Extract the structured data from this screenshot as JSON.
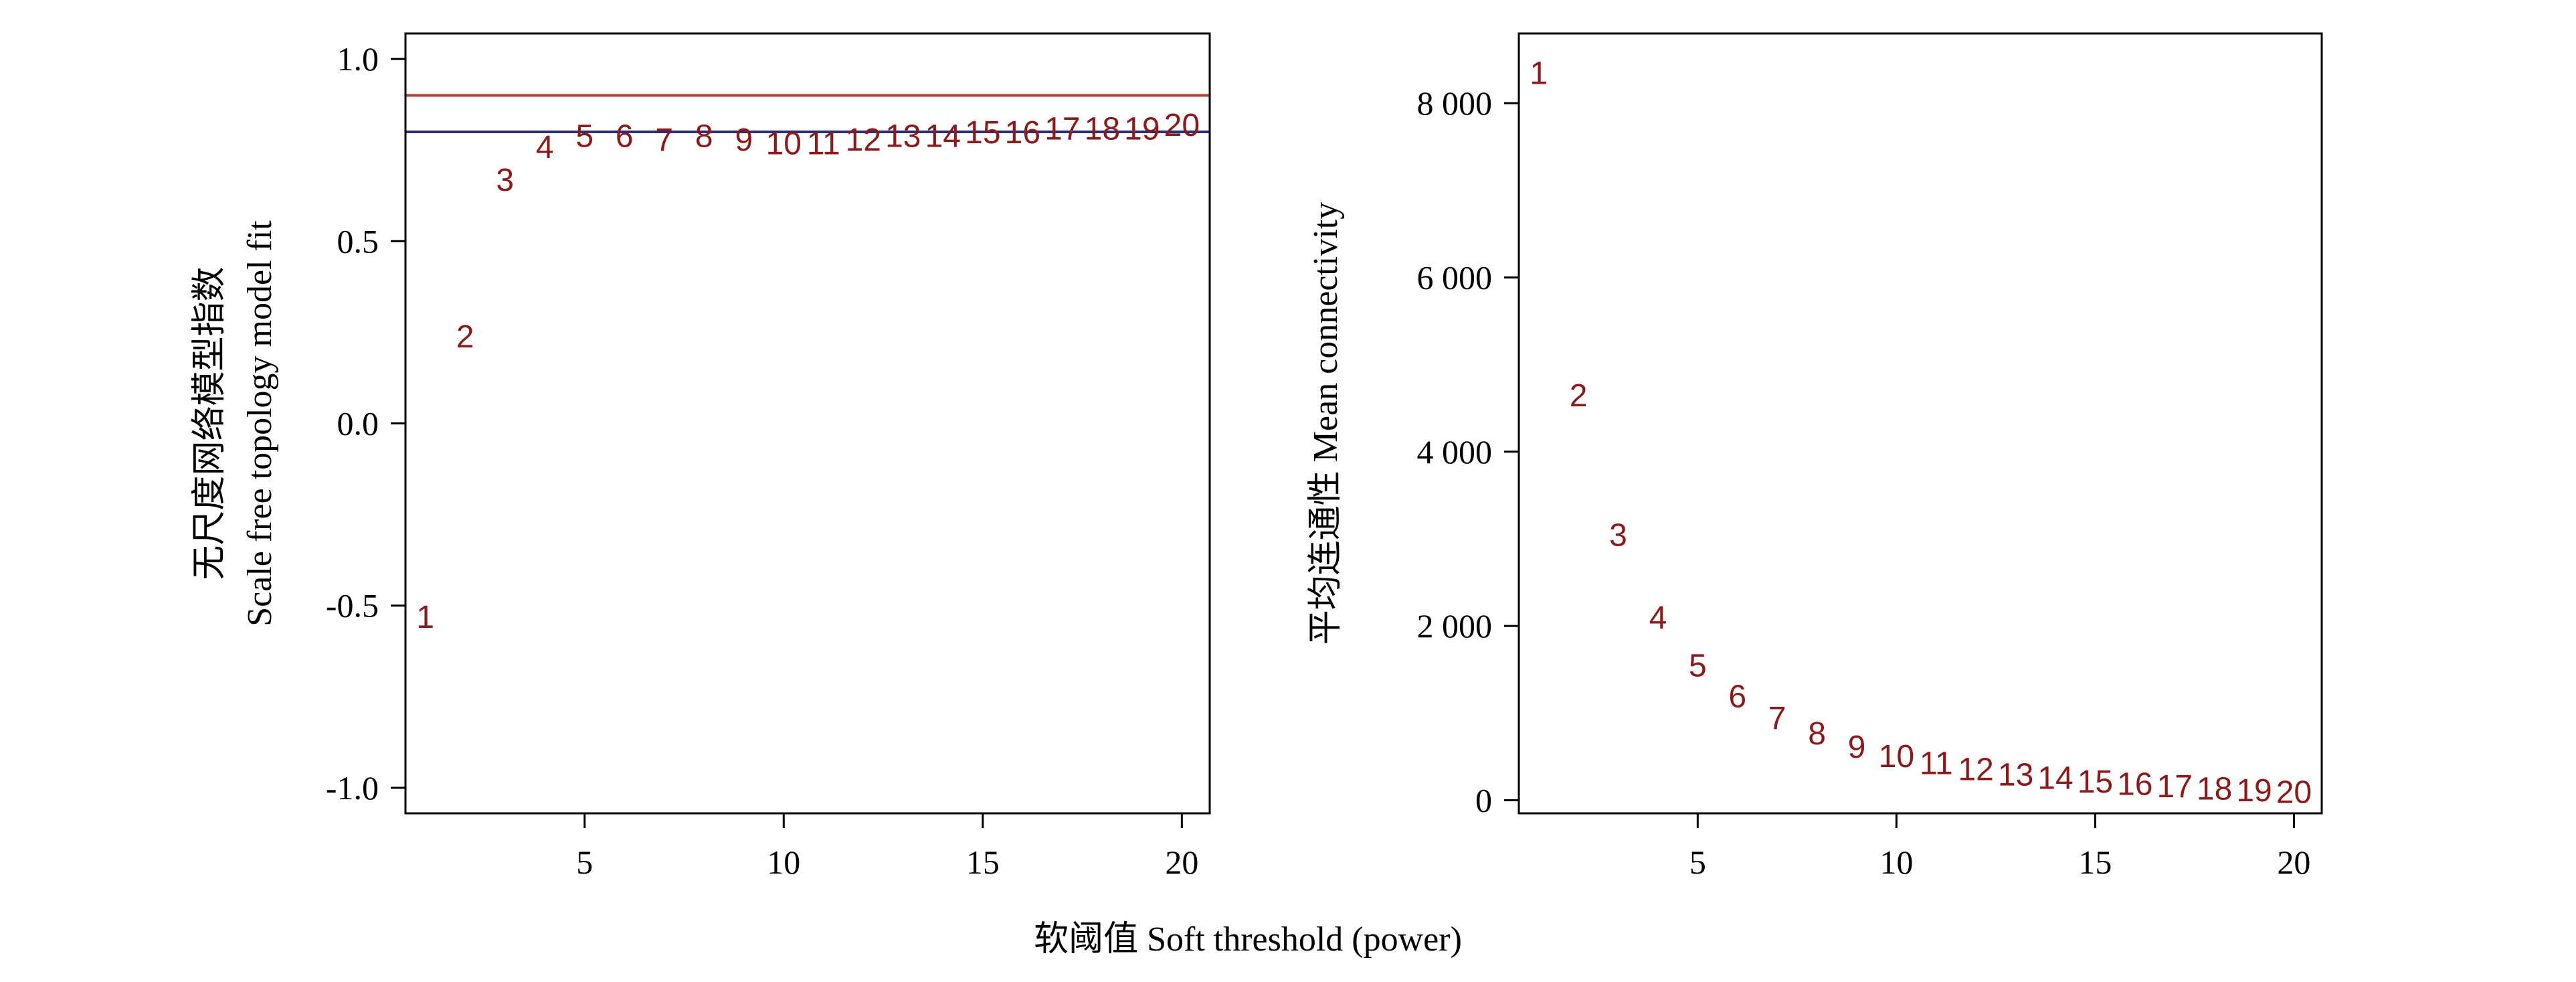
{
  "shared_xlabel": "软阈值 Soft threshold (power)",
  "colors": {
    "points": "#8b1a1a",
    "line_red": "#c0392b",
    "line_blue": "#2b2b7a",
    "axis": "#000000"
  },
  "chart_data": [
    {
      "type": "scatter",
      "title": "",
      "xlabel": "",
      "ylabel_lines": [
        "无尺度网络模型指数",
        "Scale free topology model fit"
      ],
      "xlim": [
        0.5,
        20.7
      ],
      "ylim": [
        -1.07,
        1.07
      ],
      "x_ticks": [
        5,
        10,
        15,
        20
      ],
      "x_tick_labels": [
        "5",
        "10",
        "15",
        "20"
      ],
      "y_ticks": [
        1.0,
        0.5,
        0.0,
        -0.5,
        -1.0
      ],
      "y_tick_labels": [
        "1.0",
        "0.5",
        "0.0",
        "-0.5",
        "-1.0"
      ],
      "horizontal_lines": [
        {
          "y": 0.9,
          "color": "#c0392b"
        },
        {
          "y": 0.8,
          "color": "#2b2b7a"
        }
      ],
      "points": [
        {
          "x": 1,
          "y": -0.53,
          "label": "1"
        },
        {
          "x": 2,
          "y": 0.24,
          "label": "2"
        },
        {
          "x": 3,
          "y": 0.67,
          "label": "3"
        },
        {
          "x": 4,
          "y": 0.76,
          "label": "4"
        },
        {
          "x": 5,
          "y": 0.79,
          "label": "5"
        },
        {
          "x": 6,
          "y": 0.79,
          "label": "6"
        },
        {
          "x": 7,
          "y": 0.78,
          "label": "7"
        },
        {
          "x": 8,
          "y": 0.79,
          "label": "8"
        },
        {
          "x": 9,
          "y": 0.78,
          "label": "9"
        },
        {
          "x": 10,
          "y": 0.77,
          "label": "10"
        },
        {
          "x": 11,
          "y": 0.77,
          "label": "11"
        },
        {
          "x": 12,
          "y": 0.78,
          "label": "12"
        },
        {
          "x": 13,
          "y": 0.79,
          "label": "13"
        },
        {
          "x": 14,
          "y": 0.79,
          "label": "14"
        },
        {
          "x": 15,
          "y": 0.8,
          "label": "15"
        },
        {
          "x": 16,
          "y": 0.8,
          "label": "16"
        },
        {
          "x": 17,
          "y": 0.81,
          "label": "17"
        },
        {
          "x": 18,
          "y": 0.81,
          "label": "18"
        },
        {
          "x": 19,
          "y": 0.81,
          "label": "19"
        },
        {
          "x": 20,
          "y": 0.82,
          "label": "20"
        }
      ]
    },
    {
      "type": "scatter",
      "title": "",
      "xlabel": "",
      "ylabel_lines": [
        "平均连通性 Mean connectivity"
      ],
      "xlim": [
        0.5,
        20.7
      ],
      "ylim": [
        -150,
        8800
      ],
      "x_ticks": [
        5,
        10,
        15,
        20
      ],
      "x_tick_labels": [
        "5",
        "10",
        "15",
        "20"
      ],
      "y_ticks": [
        8000,
        6000,
        4000,
        2000,
        0
      ],
      "y_tick_labels": [
        "8 000",
        "6 000",
        "4 000",
        "2 000",
        "0"
      ],
      "horizontal_lines": [],
      "points": [
        {
          "x": 1,
          "y": 8350,
          "label": "1"
        },
        {
          "x": 2,
          "y": 4650,
          "label": "2"
        },
        {
          "x": 3,
          "y": 3050,
          "label": "3"
        },
        {
          "x": 4,
          "y": 2100,
          "label": "4"
        },
        {
          "x": 5,
          "y": 1550,
          "label": "5"
        },
        {
          "x": 6,
          "y": 1200,
          "label": "6"
        },
        {
          "x": 7,
          "y": 950,
          "label": "7"
        },
        {
          "x": 8,
          "y": 770,
          "label": "8"
        },
        {
          "x": 9,
          "y": 620,
          "label": "9"
        },
        {
          "x": 10,
          "y": 510,
          "label": "10"
        },
        {
          "x": 11,
          "y": 430,
          "label": "11"
        },
        {
          "x": 12,
          "y": 360,
          "label": "12"
        },
        {
          "x": 13,
          "y": 300,
          "label": "13"
        },
        {
          "x": 14,
          "y": 260,
          "label": "14"
        },
        {
          "x": 15,
          "y": 220,
          "label": "15"
        },
        {
          "x": 16,
          "y": 190,
          "label": "16"
        },
        {
          "x": 17,
          "y": 165,
          "label": "17"
        },
        {
          "x": 18,
          "y": 140,
          "label": "18"
        },
        {
          "x": 19,
          "y": 120,
          "label": "19"
        },
        {
          "x": 20,
          "y": 100,
          "label": "20"
        }
      ]
    }
  ]
}
